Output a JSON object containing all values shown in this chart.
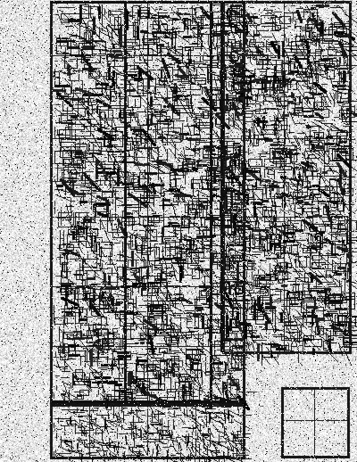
{
  "fig_width": 4.0,
  "fig_height": 5.18,
  "dpi": 100,
  "bg_base": 0.92,
  "noise_seed": 7,
  "line_darkness": 0.08,
  "noise_amount": 0.13,
  "blur_sigma": 0.4
}
